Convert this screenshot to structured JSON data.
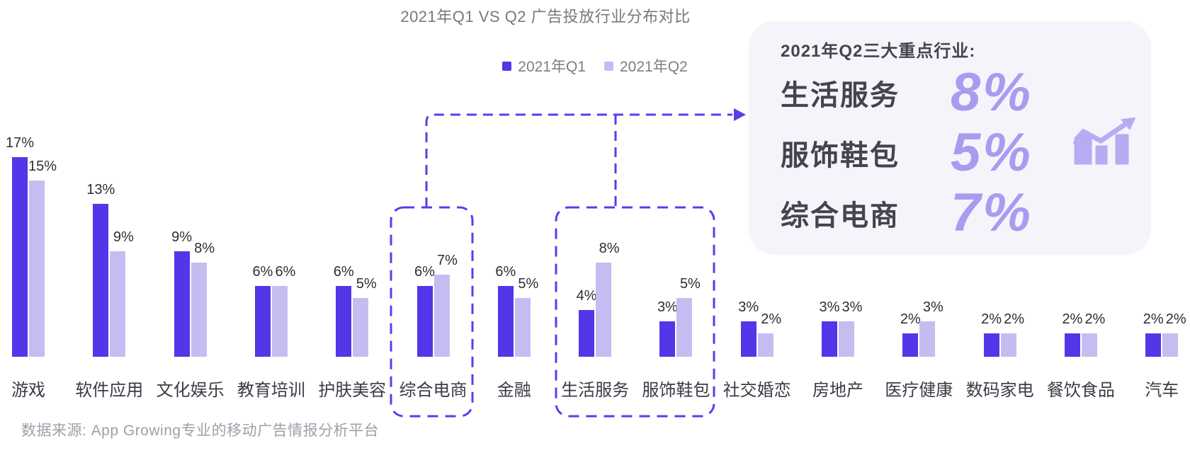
{
  "chart": {
    "title": "2021年Q1 VS Q2 广告投放行业分布对比"
  },
  "chart_data": {
    "type": "bar",
    "title": "2021年Q1 VS Q2 广告投放行业分布对比",
    "categories": [
      "游戏",
      "软件应用",
      "文化娱乐",
      "教育培训",
      "护肤美容",
      "综合电商",
      "金融",
      "生活服务",
      "服饰鞋包",
      "社交婚恋",
      "房地产",
      "医疗健康",
      "数码家电",
      "餐饮食品",
      "汽车"
    ],
    "series": [
      {
        "name": "2021年Q1",
        "color": "#5436E8",
        "values": [
          17,
          13,
          9,
          6,
          6,
          6,
          6,
          4,
          3,
          3,
          3,
          2,
          2,
          2,
          2
        ]
      },
      {
        "name": "2021年Q2",
        "color": "#C6BCF2",
        "values": [
          15,
          9,
          8,
          6,
          5,
          7,
          5,
          8,
          5,
          2,
          3,
          3,
          2,
          2,
          2
        ]
      }
    ],
    "unit": "%",
    "ylim": [
      0,
      18
    ],
    "grid": false,
    "axis_lines": false,
    "legend_position": "top",
    "highlighted_categories": [
      "综合电商",
      "生活服务",
      "服饰鞋包"
    ],
    "highlight_color": "#5B3BEE"
  },
  "callout": {
    "title": "2021年Q2三大重点行业:",
    "items": [
      {
        "label": "生活服务",
        "value": "8%"
      },
      {
        "label": "服饰鞋包",
        "value": "5%"
      },
      {
        "label": "综合电商",
        "value": "7%"
      }
    ],
    "accent_color": "#A89BF0",
    "background": "#F5F4FA",
    "icon": "trend-up-bar-chart-icon",
    "icon_color": "#B7ABF2"
  },
  "footer": {
    "source": "数据来源: App Growing专业的移动广告情报分析平台"
  }
}
